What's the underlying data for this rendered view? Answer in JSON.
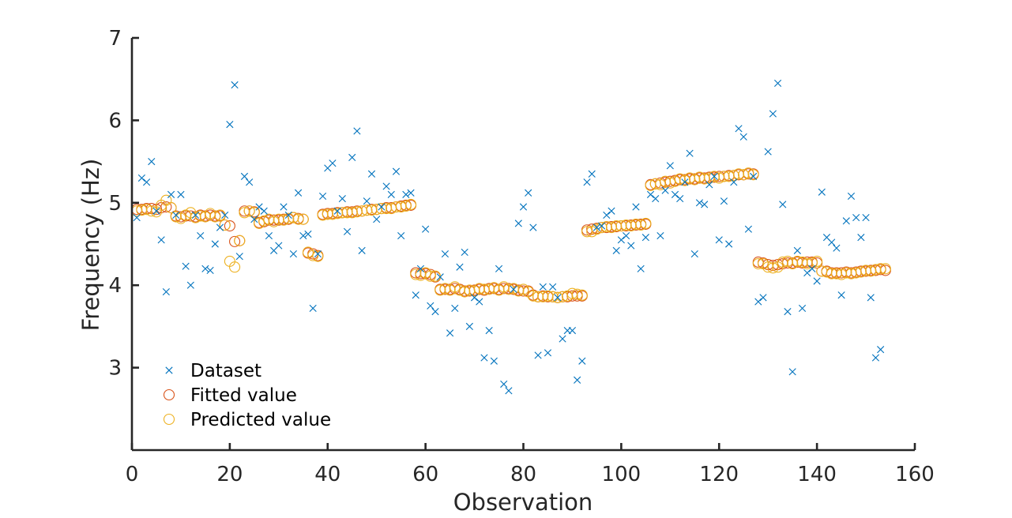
{
  "chart_data": {
    "type": "scatter",
    "title": "",
    "xlabel": "Observation",
    "ylabel": "Frequency (Hz)",
    "xlim": [
      0,
      160
    ],
    "ylim": [
      2,
      7
    ],
    "xticks": [
      0,
      20,
      40,
      60,
      80,
      100,
      120,
      140,
      160
    ],
    "yticks": [
      3,
      4,
      5,
      6,
      7
    ],
    "grid": false,
    "legend_position": "bottom-left",
    "colors": {
      "dataset": "#0072BD",
      "fitted": "#D95319",
      "predicted": "#EDB120",
      "axis": "#262626"
    },
    "series": [
      {
        "name": "Dataset",
        "marker": "x",
        "values": [
          4.82,
          5.3,
          5.25,
          5.5,
          4.9,
          4.55,
          3.92,
          5.1,
          4.85,
          5.1,
          4.23,
          4.0,
          4.85,
          4.6,
          4.2,
          4.18,
          4.5,
          4.7,
          4.85,
          5.95,
          6.43,
          4.35,
          5.32,
          5.25,
          4.8,
          4.95,
          4.9,
          4.6,
          4.42,
          4.48,
          4.95,
          4.85,
          4.38,
          5.12,
          4.6,
          4.62,
          3.72,
          4.38,
          5.08,
          5.42,
          5.48,
          4.9,
          5.05,
          4.65,
          5.55,
          5.87,
          4.42,
          5.02,
          5.35,
          4.8,
          4.95,
          5.2,
          5.1,
          5.38,
          4.6,
          5.1,
          5.12,
          3.88,
          4.2,
          4.68,
          3.75,
          3.68,
          4.1,
          4.38,
          3.42,
          3.72,
          4.22,
          4.4,
          3.5,
          3.85,
          3.8,
          3.12,
          3.45,
          3.08,
          4.2,
          2.8,
          2.72,
          3.95,
          4.75,
          4.95,
          5.12,
          4.7,
          3.15,
          3.98,
          3.18,
          3.98,
          3.85,
          3.35,
          3.45,
          3.45,
          2.85,
          3.08,
          5.25,
          5.35,
          4.7,
          4.72,
          4.85,
          4.9,
          4.42,
          4.55,
          4.6,
          4.48,
          4.95,
          4.2,
          4.58,
          5.1,
          5.05,
          4.6,
          5.15,
          5.45,
          5.1,
          5.05,
          5.25,
          5.6,
          4.38,
          5.0,
          4.98,
          5.22,
          5.32,
          4.55,
          5.02,
          4.5,
          5.25,
          5.9,
          5.8,
          4.68,
          5.32,
          3.8,
          3.85,
          5.62,
          6.08,
          6.45,
          4.98,
          3.68,
          2.95,
          4.42,
          3.72,
          4.15,
          4.2,
          4.05,
          5.13,
          4.58,
          4.52,
          4.45,
          3.88,
          4.78,
          5.08,
          4.82,
          4.58,
          4.82,
          3.85,
          3.12,
          3.22
        ]
      },
      {
        "name": "Fitted value",
        "marker": "o",
        "values": [
          4.92,
          4.92,
          4.93,
          4.93,
          4.92,
          4.94,
          4.95,
          4.94,
          4.84,
          4.83,
          4.84,
          4.84,
          4.83,
          4.85,
          4.84,
          4.85,
          4.84,
          4.84,
          4.73,
          4.72,
          4.53,
          4.54,
          4.9,
          4.9,
          4.89,
          4.76,
          4.77,
          4.79,
          4.79,
          4.79,
          4.8,
          4.8,
          4.82,
          4.81,
          4.8,
          4.39,
          4.38,
          4.36,
          4.86,
          4.87,
          4.87,
          4.88,
          4.88,
          4.89,
          4.89,
          4.9,
          4.9,
          4.91,
          4.92,
          4.92,
          4.93,
          4.94,
          4.94,
          4.95,
          4.96,
          4.97,
          4.97,
          4.15,
          4.14,
          4.14,
          4.13,
          4.1,
          3.95,
          3.95,
          3.95,
          3.96,
          3.95,
          3.93,
          3.93,
          3.94,
          3.95,
          3.94,
          3.96,
          3.96,
          3.95,
          3.96,
          3.96,
          3.95,
          3.94,
          3.93,
          3.93,
          3.88,
          3.86,
          3.87,
          3.86,
          3.86,
          3.85,
          3.86,
          3.86,
          3.87,
          3.87,
          3.87,
          4.67,
          4.68,
          4.69,
          4.7,
          4.7,
          4.71,
          4.71,
          4.72,
          4.72,
          4.73,
          4.73,
          4.74,
          4.74,
          5.22,
          5.23,
          5.24,
          5.25,
          5.26,
          5.27,
          5.28,
          5.28,
          5.29,
          5.29,
          5.3,
          5.3,
          5.31,
          5.31,
          5.32,
          5.32,
          5.33,
          5.33,
          5.34,
          5.34,
          5.35,
          5.35,
          4.28,
          4.27,
          4.25,
          4.24,
          4.25,
          4.26,
          4.27,
          4.27,
          4.28,
          4.27,
          4.28,
          4.28,
          4.27,
          4.17,
          4.17,
          4.15,
          4.15,
          4.15,
          4.16,
          4.15,
          4.16,
          4.17,
          4.17,
          4.18,
          4.18,
          4.19,
          4.18
        ]
      },
      {
        "name": "Predicted value",
        "marker": "o",
        "values": [
          4.9,
          4.91,
          4.92,
          4.9,
          4.89,
          4.97,
          5.03,
          4.94,
          4.83,
          4.81,
          4.85,
          4.88,
          4.82,
          4.84,
          4.83,
          4.87,
          4.83,
          4.85,
          4.73,
          4.29,
          4.22,
          4.54,
          4.88,
          4.9,
          4.88,
          4.75,
          4.78,
          4.8,
          4.77,
          4.8,
          4.79,
          4.81,
          4.82,
          4.8,
          4.8,
          4.4,
          4.36,
          4.35,
          4.85,
          4.86,
          4.86,
          4.87,
          4.88,
          4.88,
          4.88,
          4.89,
          4.9,
          4.91,
          4.91,
          4.92,
          4.93,
          4.93,
          4.93,
          4.95,
          4.95,
          4.96,
          4.98,
          4.13,
          4.12,
          4.15,
          4.11,
          4.11,
          3.94,
          3.96,
          3.94,
          3.98,
          3.94,
          3.92,
          3.94,
          3.93,
          3.96,
          3.95,
          3.95,
          3.97,
          3.94,
          3.98,
          3.95,
          3.96,
          3.93,
          3.95,
          3.92,
          3.87,
          3.86,
          3.86,
          3.87,
          3.86,
          3.85,
          3.86,
          3.87,
          3.9,
          3.89,
          3.88,
          4.65,
          4.65,
          4.68,
          4.7,
          4.71,
          4.7,
          4.72,
          4.72,
          4.73,
          4.72,
          4.74,
          4.73,
          4.75,
          5.21,
          5.23,
          5.22,
          5.26,
          5.24,
          5.26,
          5.29,
          5.27,
          5.3,
          5.28,
          5.31,
          5.29,
          5.3,
          5.32,
          5.3,
          5.32,
          5.32,
          5.33,
          5.35,
          5.34,
          5.36,
          5.34,
          4.26,
          4.26,
          4.22,
          4.21,
          4.22,
          4.28,
          4.29,
          4.26,
          4.29,
          4.28,
          4.26,
          4.27,
          4.29,
          4.17,
          4.16,
          4.14,
          4.14,
          4.13,
          4.15,
          4.14,
          4.15,
          4.16,
          4.18,
          4.17,
          4.19,
          4.2,
          4.2
        ]
      }
    ]
  }
}
